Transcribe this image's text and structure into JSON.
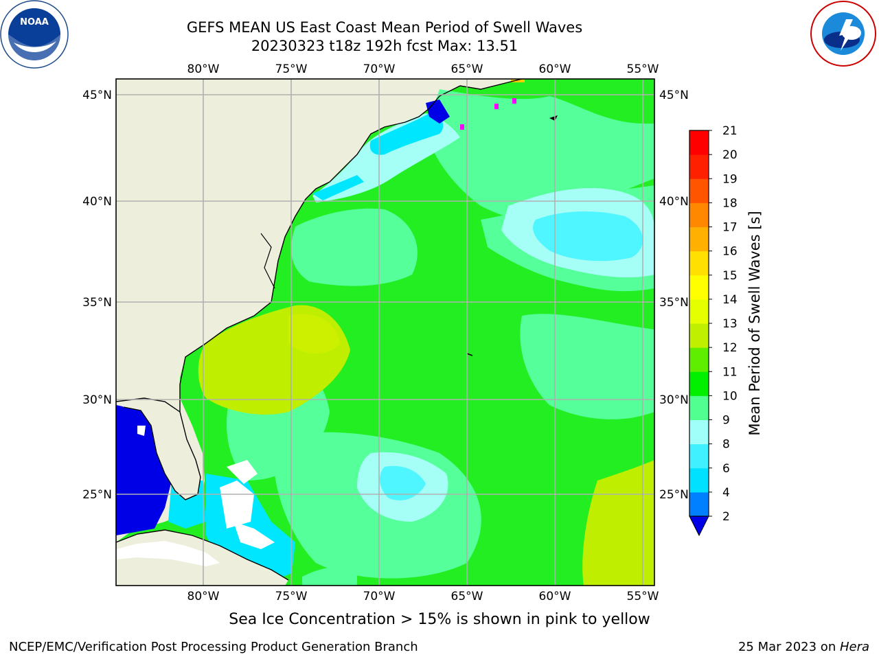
{
  "title": {
    "line1": "GEFS MEAN US East Coast Mean Period of Swell Waves",
    "line2": "20230323 t18z 192h fcst   Max: 13.51"
  },
  "map": {
    "lon_labels": [
      "80°W",
      "75°W",
      "70°W",
      "65°W",
      "60°W",
      "55°W"
    ],
    "lat_labels": [
      "45°N",
      "40°N",
      "35°N",
      "30°N",
      "25°N"
    ],
    "colors": {
      "land": "#eeeedd",
      "grid": "#b0b0b0",
      "coast": "#000000",
      "sea_ice": "#ff00ff"
    }
  },
  "colorbar": {
    "label": "Mean Period of Swell Waves [s]",
    "ticks": [
      "2",
      "4",
      "6",
      "8",
      "9",
      "10",
      "11",
      "12",
      "13",
      "14",
      "15",
      "16",
      "17",
      "18",
      "19",
      "20",
      "21"
    ],
    "colors": [
      "#0000e6",
      "#0080ff",
      "#00e0ff",
      "#40f0ff",
      "#a0fff8",
      "#50ff90",
      "#00f000",
      "#60ee00",
      "#c0f000",
      "#e6ff00",
      "#ffff00",
      "#ffe000",
      "#ffb000",
      "#ff8800",
      "#ff5500",
      "#ff2000",
      "#ff0000"
    ]
  },
  "logos": {
    "left_name": "NOAA",
    "right_name": "NATIONAL WEATHER SERVICE"
  },
  "ice_note": "Sea Ice Concentration > 15% is shown in pink to yellow",
  "footer": {
    "left": "NCEP/EMC/Verification Post Processing Product Generation Branch",
    "right_date": "25 Mar 2023 on ",
    "right_host": "Hera"
  }
}
